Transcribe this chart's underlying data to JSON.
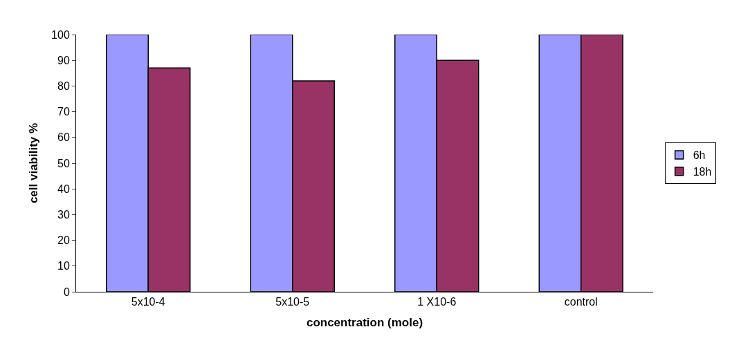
{
  "chart_data": {
    "type": "bar",
    "xlabel": "concentration (mole)",
    "ylabel": "cell viability %",
    "categories": [
      "5x10-4",
      "5x10-5",
      "1 X10-6",
      "control"
    ],
    "series": [
      {
        "name": "6h",
        "color": "#9999ff",
        "values": [
          100,
          100,
          100,
          100
        ]
      },
      {
        "name": "18h",
        "color": "#993366",
        "values": [
          87,
          82,
          90,
          100
        ]
      }
    ],
    "ylim": [
      0,
      100
    ],
    "yticks": [
      0,
      10,
      20,
      30,
      40,
      50,
      60,
      70,
      80,
      90,
      100
    ],
    "grid": false,
    "legend": "right"
  }
}
